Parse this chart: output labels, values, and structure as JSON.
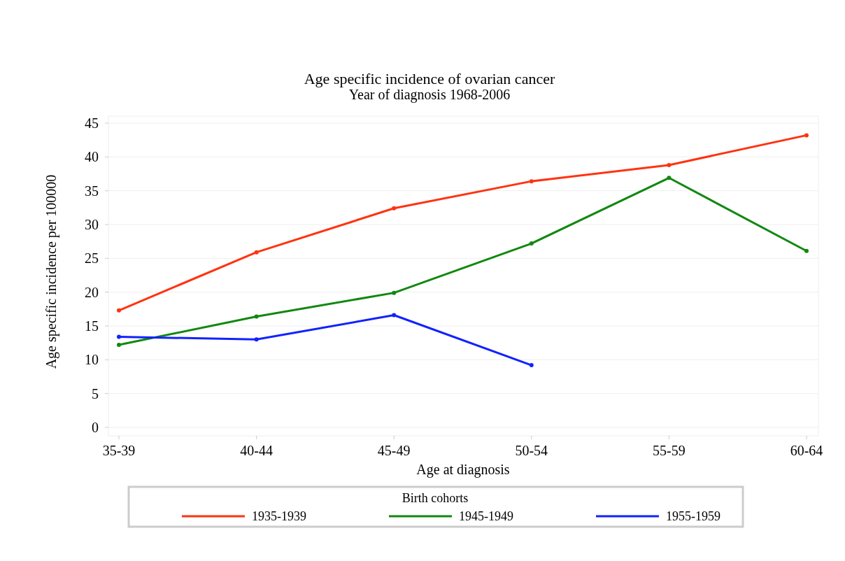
{
  "chart_data": {
    "type": "line",
    "title": "Age specific incidence of ovarian cancer",
    "subtitle": "Year of diagnosis 1968-2006",
    "xlabel": "Age at diagnosis",
    "ylabel": "Age specific incidence per 100000",
    "legend_title": "Birth cohorts",
    "categories": [
      "35-39",
      "40-44",
      "45-49",
      "50-54",
      "55-59",
      "60-64"
    ],
    "series": [
      {
        "name": "1935-1939",
        "color": "#ff3311",
        "values": [
          17.3,
          25.9,
          32.4,
          36.4,
          38.8,
          43.2
        ]
      },
      {
        "name": "1945-1949",
        "color": "#118811",
        "values": [
          12.2,
          16.4,
          19.9,
          27.2,
          36.9,
          26.1
        ]
      },
      {
        "name": "1955-1959",
        "color": "#1122ff",
        "values": [
          13.4,
          13.0,
          16.6,
          9.2,
          null,
          null
        ]
      }
    ],
    "ylim": [
      0,
      45
    ],
    "yticks": [
      0,
      5,
      10,
      15,
      20,
      25,
      30,
      35,
      40,
      45
    ],
    "grid": "y",
    "legend": "bottom",
    "marker": "circle",
    "line_style": "solid"
  }
}
